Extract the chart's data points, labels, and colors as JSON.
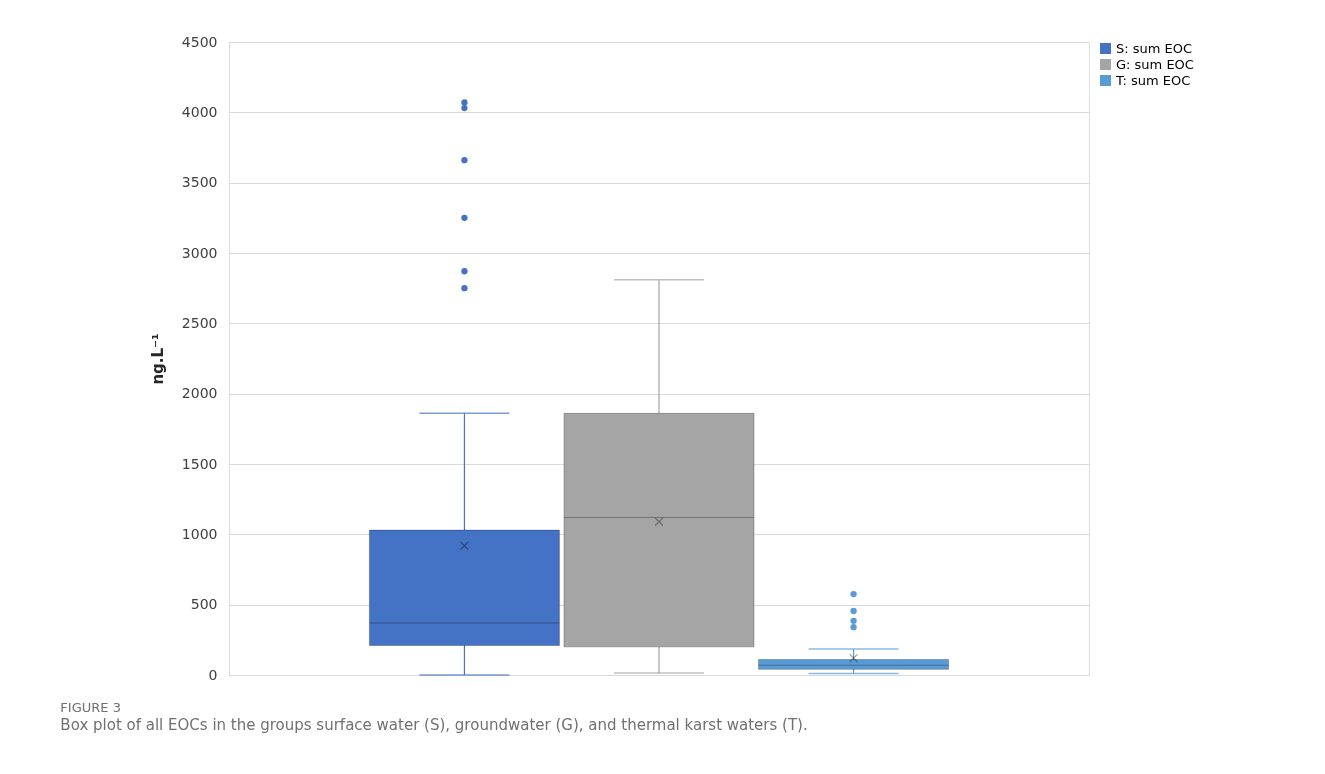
{
  "chart_data": {
    "type": "box",
    "ylabel": "ng.L⁻¹",
    "categories": [
      null
    ],
    "series": [
      {
        "name": "S: sum EOC",
        "color": "#4472c4",
        "boxes": [
          {
            "low": 0,
            "q1": 210,
            "median": 370,
            "q3": 1030,
            "high": 1860,
            "mean": 920,
            "outliers": [
              2750,
              2870,
              3250,
              3660,
              4030,
              4070
            ]
          }
        ]
      },
      {
        "name": "G: sum EOC",
        "color": "#a5a5a5",
        "boxes": [
          {
            "low": 15,
            "q1": 200,
            "median": 1120,
            "q3": 1860,
            "high": 2810,
            "mean": 1090
          }
        ]
      },
      {
        "name": "T: sum EOC",
        "color": "#5b9bd5",
        "boxes": [
          {
            "low": 10,
            "q1": 40,
            "median": 70,
            "q3": 110,
            "high": 185,
            "mean": 120,
            "outliers": [
              340,
              385,
              455,
              575
            ]
          }
        ]
      }
    ],
    "ylim": [
      0,
      4500
    ],
    "yticks": [
      0,
      500,
      1000,
      1500,
      2000,
      2500,
      3000,
      3500,
      4000,
      4500
    ],
    "grid": "y",
    "legend": "right",
    "marker": "circle",
    "tick_labels": "y",
    "annotations": [
      "FIGURE 3",
      "Box plot of all EOCs in the groups surface water (S), groundwater (G), and thermal karst waters (T)."
    ]
  }
}
